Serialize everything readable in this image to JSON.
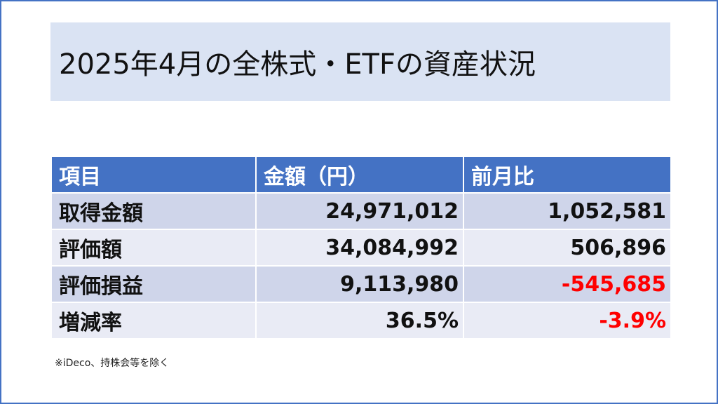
{
  "title": "2025年4月の全株式・ETFの資産状況",
  "table": {
    "headers": [
      "項目",
      "金額（円）",
      "前月比"
    ],
    "rows": [
      {
        "label": "取得金額",
        "amount": "24,971,012",
        "change": "1,052,581",
        "change_negative": false
      },
      {
        "label": "評価額",
        "amount": "34,084,992",
        "change": "506,896",
        "change_negative": false
      },
      {
        "label": "評価損益",
        "amount": "9,113,980",
        "change": "-545,685",
        "change_negative": true
      },
      {
        "label": "増減率",
        "amount": "36.5%",
        "change": "-3.9%",
        "change_negative": true
      }
    ]
  },
  "footnote": "※iDeco、持株会等を除く",
  "colors": {
    "header_bg": "#4472c4",
    "title_bg": "#dae3f3",
    "row_odd": "#cfd5ea",
    "row_even": "#e9ebf5",
    "negative": "#ff0000"
  }
}
